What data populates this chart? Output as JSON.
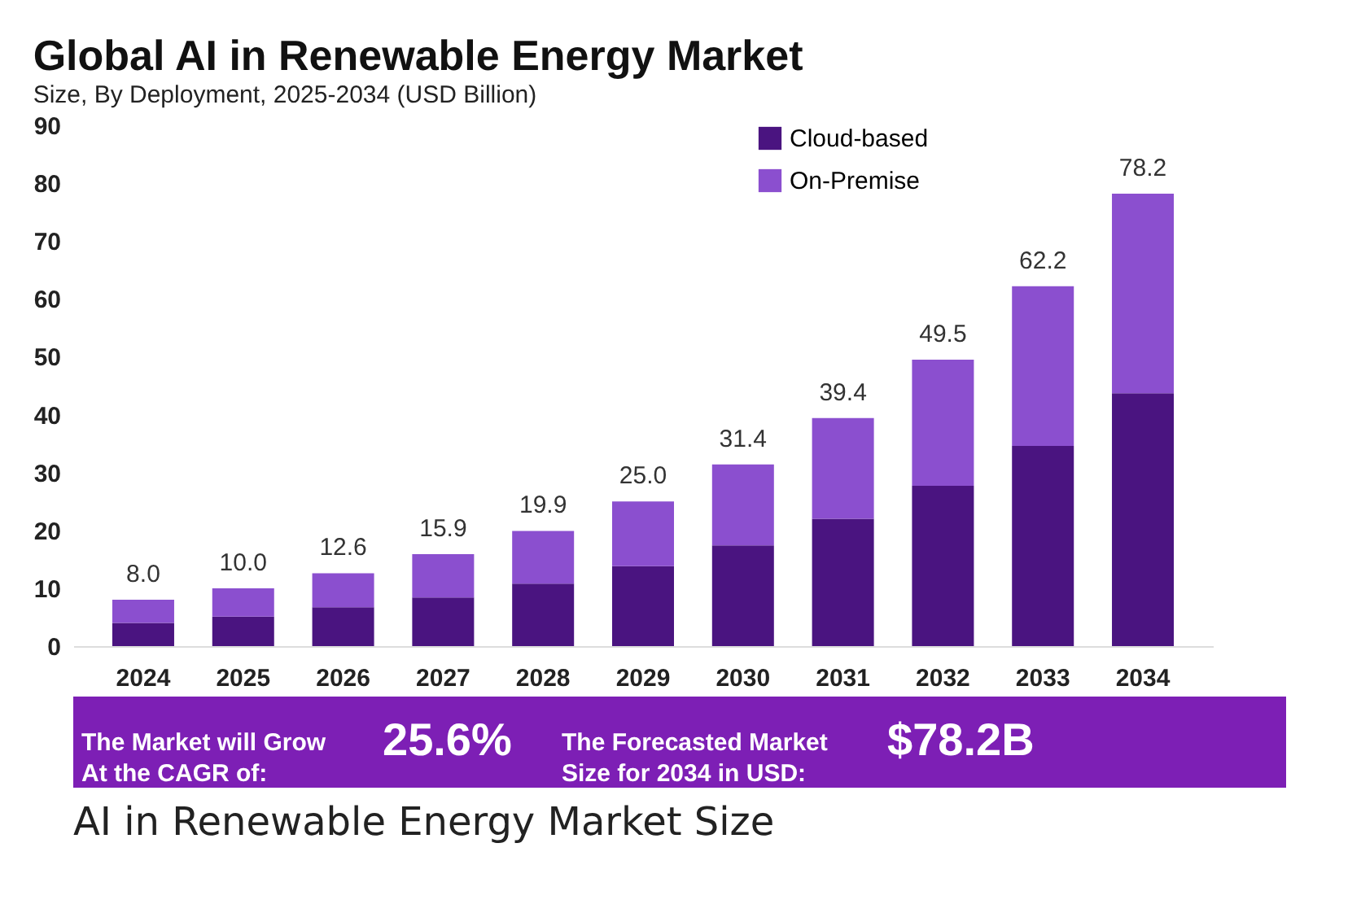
{
  "chart_data": {
    "type": "bar",
    "title": "Global AI in Renewable Energy Market",
    "subtitle": "Size, By Deployment, 2025-2034 (USD Billion)",
    "categories": [
      "2024",
      "2025",
      "2026",
      "2027",
      "2028",
      "2029",
      "2030",
      "2031",
      "2032",
      "2033",
      "2034"
    ],
    "stacked": true,
    "series": [
      {
        "name": "Cloud-based",
        "color": "#4a1480",
        "values": [
          4.0,
          5.1,
          6.7,
          8.4,
          10.8,
          13.8,
          17.4,
          22.0,
          27.7,
          34.6,
          43.7
        ]
      },
      {
        "name": "On-Premise",
        "color": "#8b4fcf",
        "values": [
          4.0,
          4.9,
          5.9,
          7.5,
          9.1,
          11.2,
          14.0,
          17.4,
          21.8,
          27.6,
          34.5
        ]
      }
    ],
    "totals": [
      "8.0",
      "10.0",
      "12.6",
      "15.9",
      "19.9",
      "25.0",
      "31.4",
      "39.4",
      "49.5",
      "62.2",
      "78.2"
    ],
    "ylim": [
      0,
      90
    ],
    "yticks": [
      0,
      10,
      20,
      30,
      40,
      50,
      60,
      70,
      80,
      90
    ],
    "grid": false,
    "legend": "top right",
    "annotations": [
      "The Market will Grow At the CAGR of:",
      "25.6%",
      "The Forecasted Market Size for 2034 in USD:",
      "$78.2B",
      "AI in Renewable Energy Market Size"
    ]
  }
}
